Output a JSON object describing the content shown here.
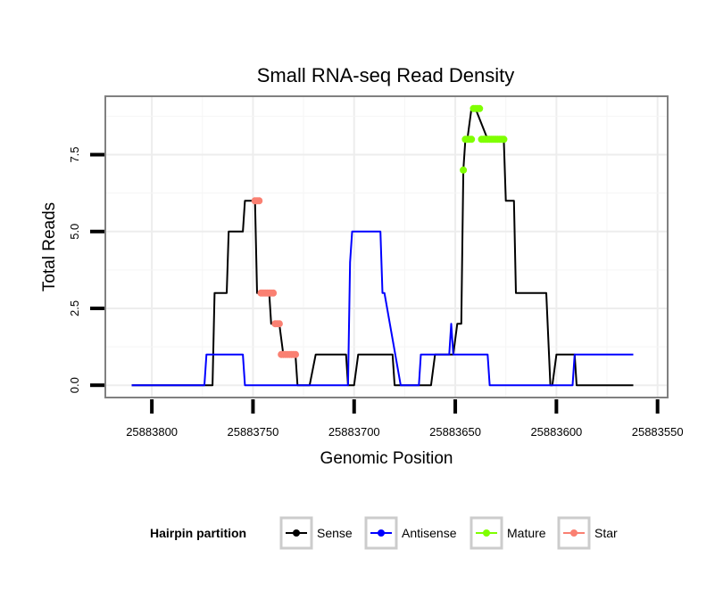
{
  "chart_data": {
    "type": "line",
    "title": "Small RNA-seq Read Density",
    "xlabel": "Genomic Position",
    "ylabel": "Total Reads",
    "x_reversed": true,
    "xlim": [
      25883823,
      25883545
    ],
    "ylim": [
      -0.4,
      9.4
    ],
    "x_ticks": [
      25883800,
      25883750,
      25883700,
      25883650,
      25883600,
      25883550
    ],
    "x_tick_labels": [
      "25883800",
      "25883750",
      "25883700",
      "25883650",
      "25883600",
      "25883550"
    ],
    "y_ticks": [
      0,
      2.5,
      5,
      7.5
    ],
    "y_tick_labels": [
      "0.0",
      "2.5",
      "5.0",
      "7.5"
    ],
    "grid": true,
    "legend": {
      "title": "Hairpin partition",
      "position": "bottom",
      "entries": [
        {
          "name": "Sense",
          "color": "#000000"
        },
        {
          "name": "Antisense",
          "color": "#0000ff"
        },
        {
          "name": "Mature",
          "color": "#7fff00"
        },
        {
          "name": "Star",
          "color": "#fa8072"
        }
      ]
    },
    "series": [
      {
        "name": "Sense",
        "color": "#000000",
        "x": [
          25883810,
          25883770,
          25883769,
          25883763,
          25883762,
          25883755,
          25883754,
          25883749,
          25883748,
          25883746,
          25883745,
          25883742,
          25883741,
          25883737,
          25883735,
          25883729,
          25883728,
          25883722,
          25883719,
          25883704,
          25883703,
          25883700,
          25883698,
          25883681,
          25883680,
          25883677,
          25883676,
          25883662,
          25883660,
          25883651,
          25883649,
          25883647,
          25883646,
          25883645,
          25883644,
          25883642,
          25883640,
          25883634,
          25883633,
          25883631,
          25883629,
          25883626,
          25883625,
          25883621,
          25883620,
          25883618,
          25883617,
          25883614,
          25883613,
          25883612,
          25883611,
          25883610,
          25883606,
          25883605,
          25883603,
          25883602,
          25883600,
          25883591,
          25883590,
          25883589,
          25883562
        ],
        "y": [
          0,
          0,
          3,
          3,
          5,
          5,
          6,
          6,
          3,
          3,
          3,
          3,
          2,
          2,
          1,
          1,
          0,
          0,
          1,
          1,
          0,
          0,
          1,
          1,
          0,
          0,
          0,
          0,
          1,
          1,
          2,
          2,
          7,
          8,
          8,
          9,
          9,
          8,
          8,
          8,
          8,
          8,
          6,
          6,
          3,
          3,
          3,
          3,
          3,
          3,
          3,
          3,
          3,
          3,
          0,
          0,
          1,
          1,
          0,
          0,
          0
        ]
      },
      {
        "name": "Antisense",
        "color": "#0000ff",
        "x": [
          25883810,
          25883774,
          25883773,
          25883755,
          25883754,
          25883703,
          25883702,
          25883701,
          25883687,
          25883686,
          25883685,
          25883677,
          25883676,
          25883668,
          25883667,
          25883653,
          25883652,
          25883651,
          25883634,
          25883633,
          25883592,
          25883591,
          25883562
        ],
        "y": [
          0,
          0,
          1,
          1,
          0,
          0,
          4,
          5,
          5,
          3,
          3,
          0,
          0,
          0,
          1,
          1,
          2,
          1,
          1,
          0,
          0,
          1,
          1
        ]
      }
    ],
    "marker_series": [
      {
        "name": "Mature",
        "color": "#7fff00",
        "x": [
          25883646,
          25883645,
          25883644,
          25883643,
          25883642,
          25883641,
          25883640,
          25883639,
          25883638,
          25883637,
          25883636,
          25883635,
          25883634,
          25883633,
          25883632,
          25883631,
          25883630,
          25883629,
          25883628,
          25883627,
          25883626
        ],
        "y": [
          7,
          8,
          8,
          8,
          8,
          9,
          9,
          9,
          9,
          8,
          8,
          8,
          8,
          8,
          8,
          8,
          8,
          8,
          8,
          8,
          8
        ]
      },
      {
        "name": "Star",
        "color": "#fa8072",
        "x": [
          25883749,
          25883748,
          25883747,
          25883746,
          25883745,
          25883744,
          25883743,
          25883742,
          25883741,
          25883740,
          25883739,
          25883738,
          25883737,
          25883736,
          25883735,
          25883734,
          25883733,
          25883732,
          25883731,
          25883730,
          25883729
        ],
        "y": [
          6,
          6,
          6,
          3,
          3,
          3,
          3,
          3,
          3,
          3,
          2,
          2,
          2,
          1,
          1,
          1,
          1,
          1,
          1,
          1,
          1
        ]
      }
    ]
  }
}
